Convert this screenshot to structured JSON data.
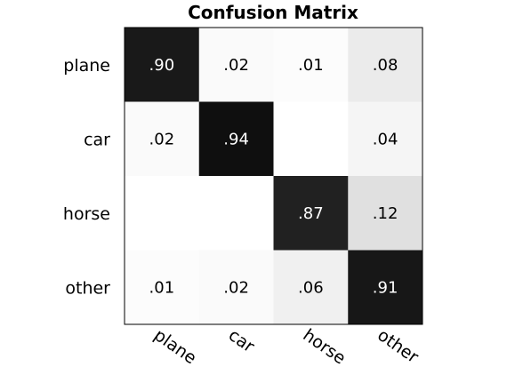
{
  "chart_data": {
    "type": "heatmap",
    "title": "Confusion Matrix",
    "rows": [
      "plane",
      "car",
      "horse",
      "other"
    ],
    "columns": [
      "plane",
      "car",
      "horse",
      "other"
    ],
    "values": [
      [
        0.9,
        0.02,
        0.01,
        0.08
      ],
      [
        0.02,
        0.94,
        null,
        0.04
      ],
      [
        null,
        null,
        0.87,
        0.12
      ],
      [
        0.01,
        0.02,
        0.06,
        0.91
      ]
    ],
    "cell_labels": [
      [
        ".90",
        ".02",
        ".01",
        ".08"
      ],
      [
        ".02",
        ".94",
        "",
        ".04"
      ],
      [
        "",
        "",
        ".87",
        ".12"
      ],
      [
        ".01",
        ".02",
        ".06",
        ".91"
      ]
    ],
    "colormap": "grayscale-reversed",
    "color_range": [
      0,
      1
    ],
    "grid": false,
    "legend": "none"
  }
}
